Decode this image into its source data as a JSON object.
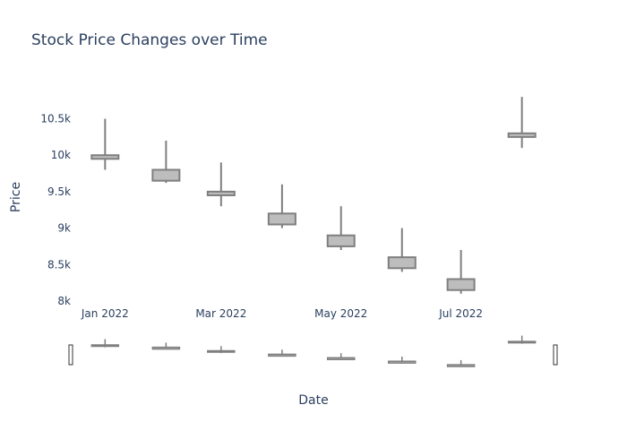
{
  "chart_data": {
    "type": "candlestick",
    "title": "Stock Price Changes over Time",
    "xlabel": "Date",
    "ylabel": "Price",
    "ylim": [
      7950,
      10900
    ],
    "yticks": [
      8000,
      8500,
      9000,
      9500,
      10000,
      10500
    ],
    "ytick_labels": [
      "8k",
      "8.5k",
      "9k",
      "9.5k",
      "10k",
      "10.5k"
    ],
    "xticks": [
      {
        "date": "2022-01-01",
        "label": "Jan 2022"
      },
      {
        "date": "2022-03-01",
        "label": "Mar 2022"
      },
      {
        "date": "2022-05-01",
        "label": "May 2022"
      },
      {
        "date": "2022-07-01",
        "label": "Jul 2022"
      }
    ],
    "candles": [
      {
        "date": "2022-01-01",
        "open": 9950,
        "high": 10500,
        "low": 9800,
        "close": 10000
      },
      {
        "date": "2022-02-01",
        "open": 9800,
        "high": 10200,
        "low": 9620,
        "close": 9650
      },
      {
        "date": "2022-03-01",
        "open": 9500,
        "high": 9900,
        "low": 9300,
        "close": 9450
      },
      {
        "date": "2022-04-01",
        "open": 9200,
        "high": 9600,
        "low": 9000,
        "close": 9050
      },
      {
        "date": "2022-05-01",
        "open": 8900,
        "high": 9300,
        "low": 8700,
        "close": 8750
      },
      {
        "date": "2022-06-01",
        "open": 8600,
        "high": 9000,
        "low": 8400,
        "close": 8450
      },
      {
        "date": "2022-07-01",
        "open": 8300,
        "high": 8700,
        "low": 8100,
        "close": 8150
      },
      {
        "date": "2022-08-01",
        "open": 10250,
        "high": 10800,
        "low": 10100,
        "close": 10300
      }
    ],
    "colors": {
      "candle_fill": "#bdbdbd",
      "candle_line": "#7f7f7f",
      "text": "#2a3f5f"
    },
    "grid": false,
    "legend": "none",
    "rangeslider": true
  }
}
